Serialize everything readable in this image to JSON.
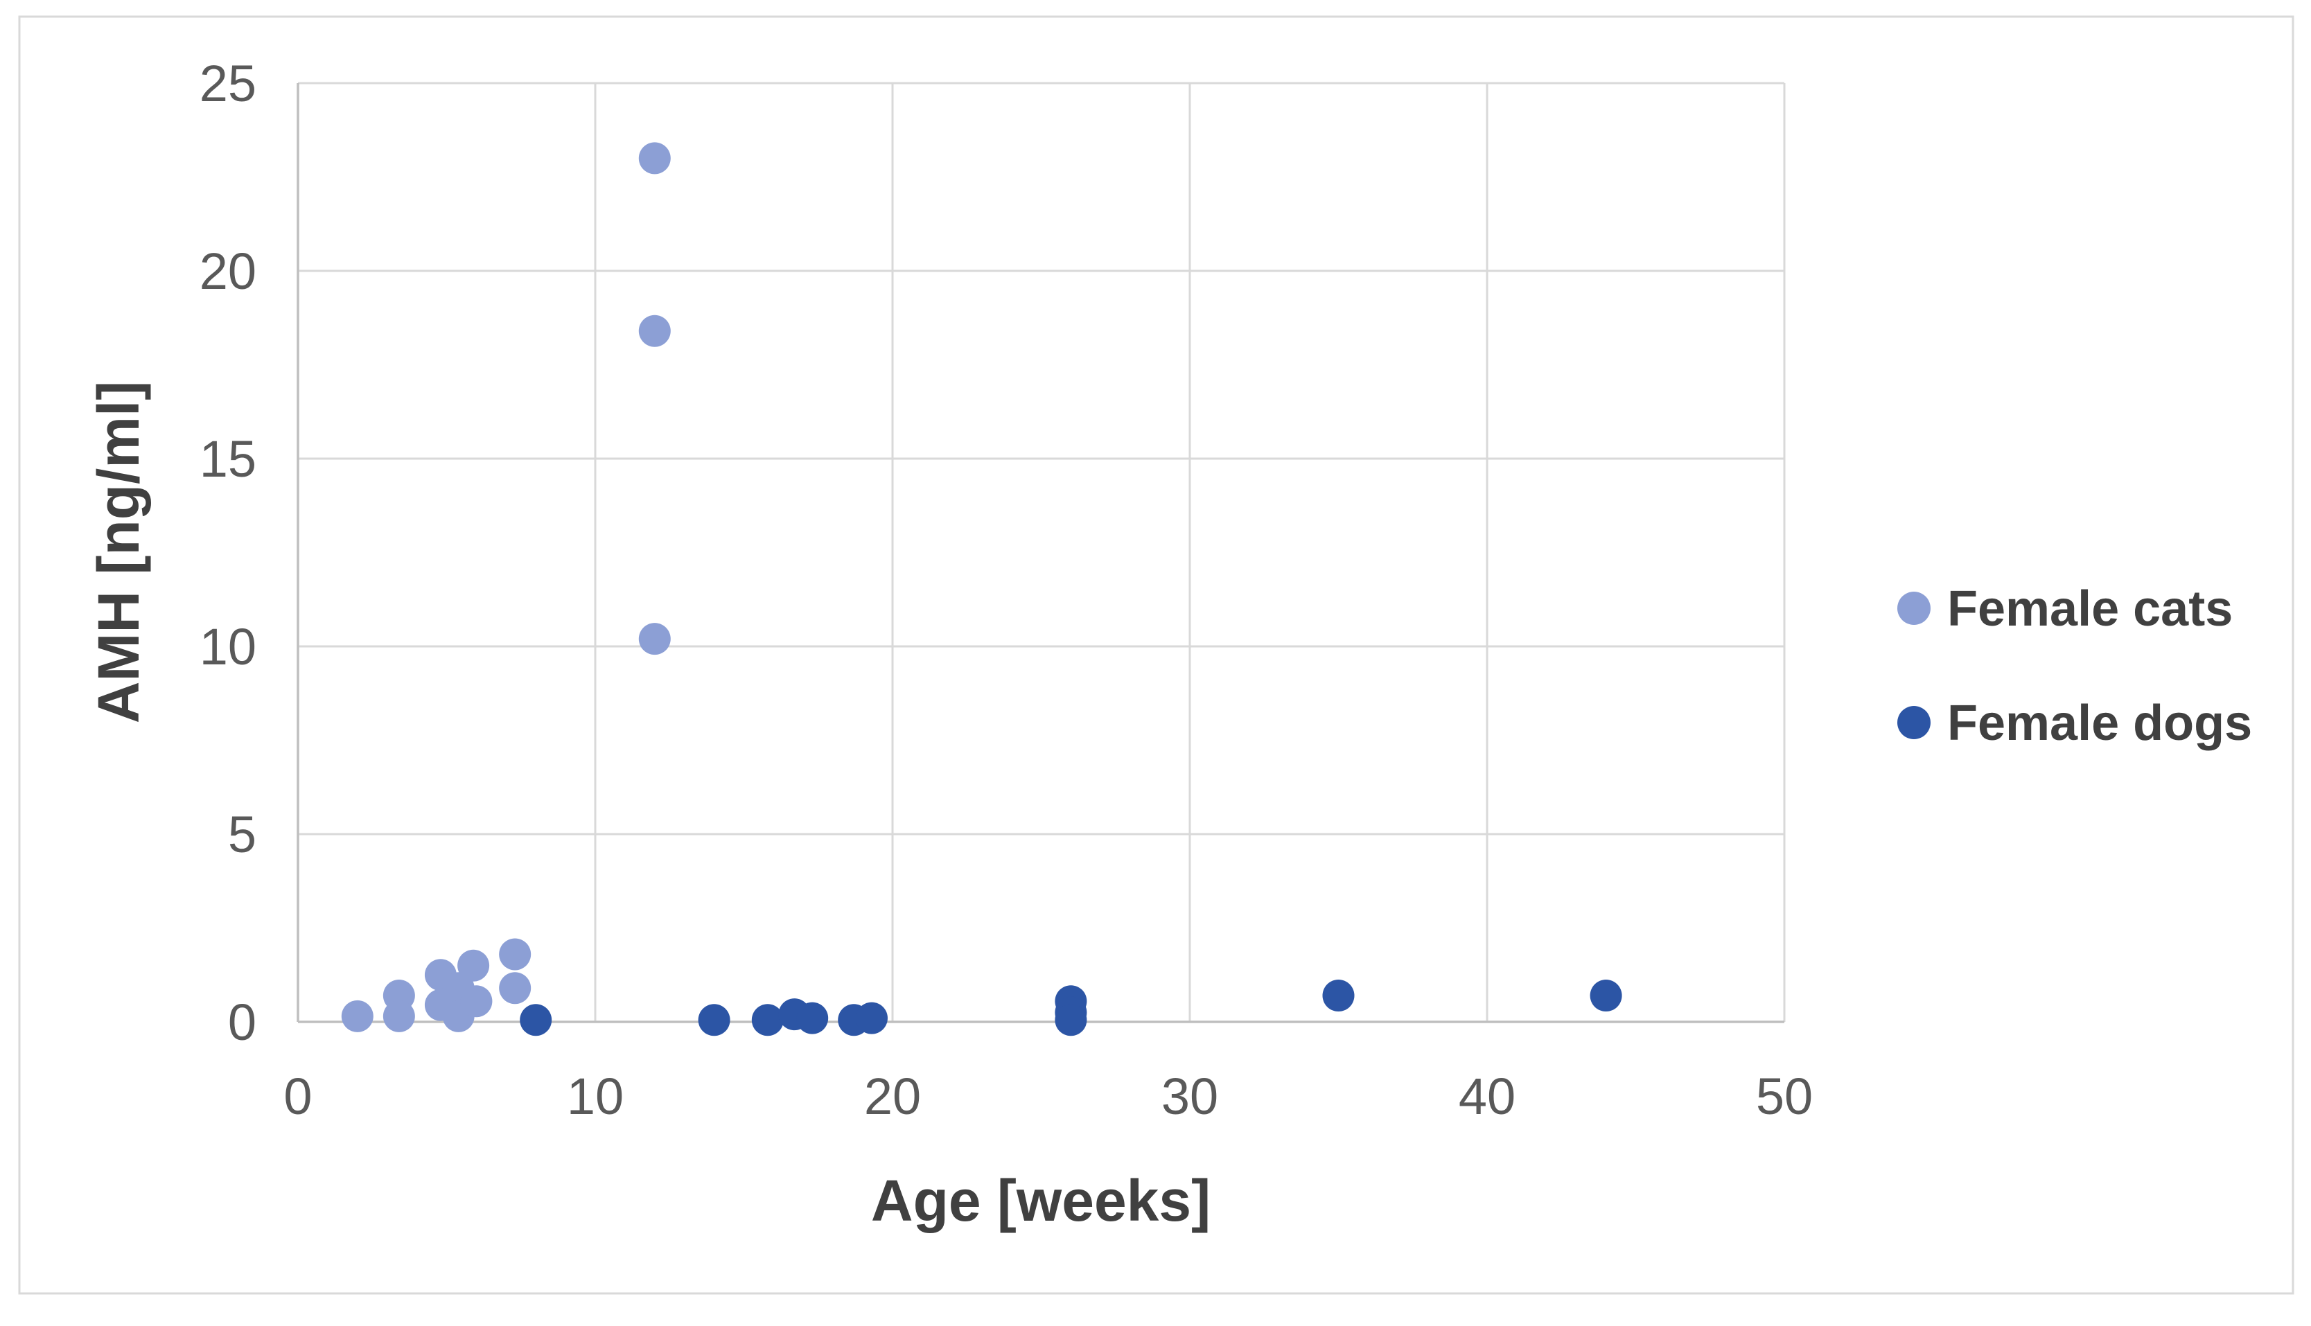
{
  "figure": {
    "background_color": "#ffffff",
    "border_color": "#d9d9d9",
    "gridline_color": "#d9d9d9",
    "axis_line_color": "#bfbfbf",
    "tick_label_color": "#595959",
    "title_text_color": "#404040"
  },
  "chart_data": {
    "type": "scatter",
    "title": "",
    "xlabel": "Age [weeks]",
    "ylabel": "AMH [ng/ml]",
    "xlim": [
      0,
      50
    ],
    "ylim": [
      0,
      25
    ],
    "xticks": [
      0,
      10,
      20,
      30,
      40,
      50
    ],
    "yticks": [
      0,
      5,
      10,
      15,
      20,
      25
    ],
    "grid": true,
    "legend_position": "right",
    "series": [
      {
        "name": "Female cats",
        "color": "#8C9FD5",
        "points": [
          [
            2.0,
            0.15
          ],
          [
            3.4,
            0.7
          ],
          [
            3.4,
            0.15
          ],
          [
            4.8,
            1.25
          ],
          [
            4.8,
            0.45
          ],
          [
            5.4,
            0.9
          ],
          [
            5.4,
            0.15
          ],
          [
            5.9,
            1.5
          ],
          [
            6.0,
            0.55
          ],
          [
            7.3,
            1.8
          ],
          [
            7.3,
            0.9
          ],
          [
            12,
            23
          ],
          [
            12,
            18.4
          ],
          [
            12,
            10.2
          ]
        ]
      },
      {
        "name": "Female dogs",
        "color": "#2C55A5",
        "points": [
          [
            8,
            0.05
          ],
          [
            14,
            0.05
          ],
          [
            15.8,
            0.05
          ],
          [
            16.7,
            0.2
          ],
          [
            17.3,
            0.1
          ],
          [
            18.7,
            0.05
          ],
          [
            19.3,
            0.1
          ],
          [
            26,
            0.55
          ],
          [
            26,
            0.25
          ],
          [
            26,
            0.05
          ],
          [
            35,
            0.7
          ],
          [
            44,
            0.7
          ]
        ]
      }
    ]
  }
}
